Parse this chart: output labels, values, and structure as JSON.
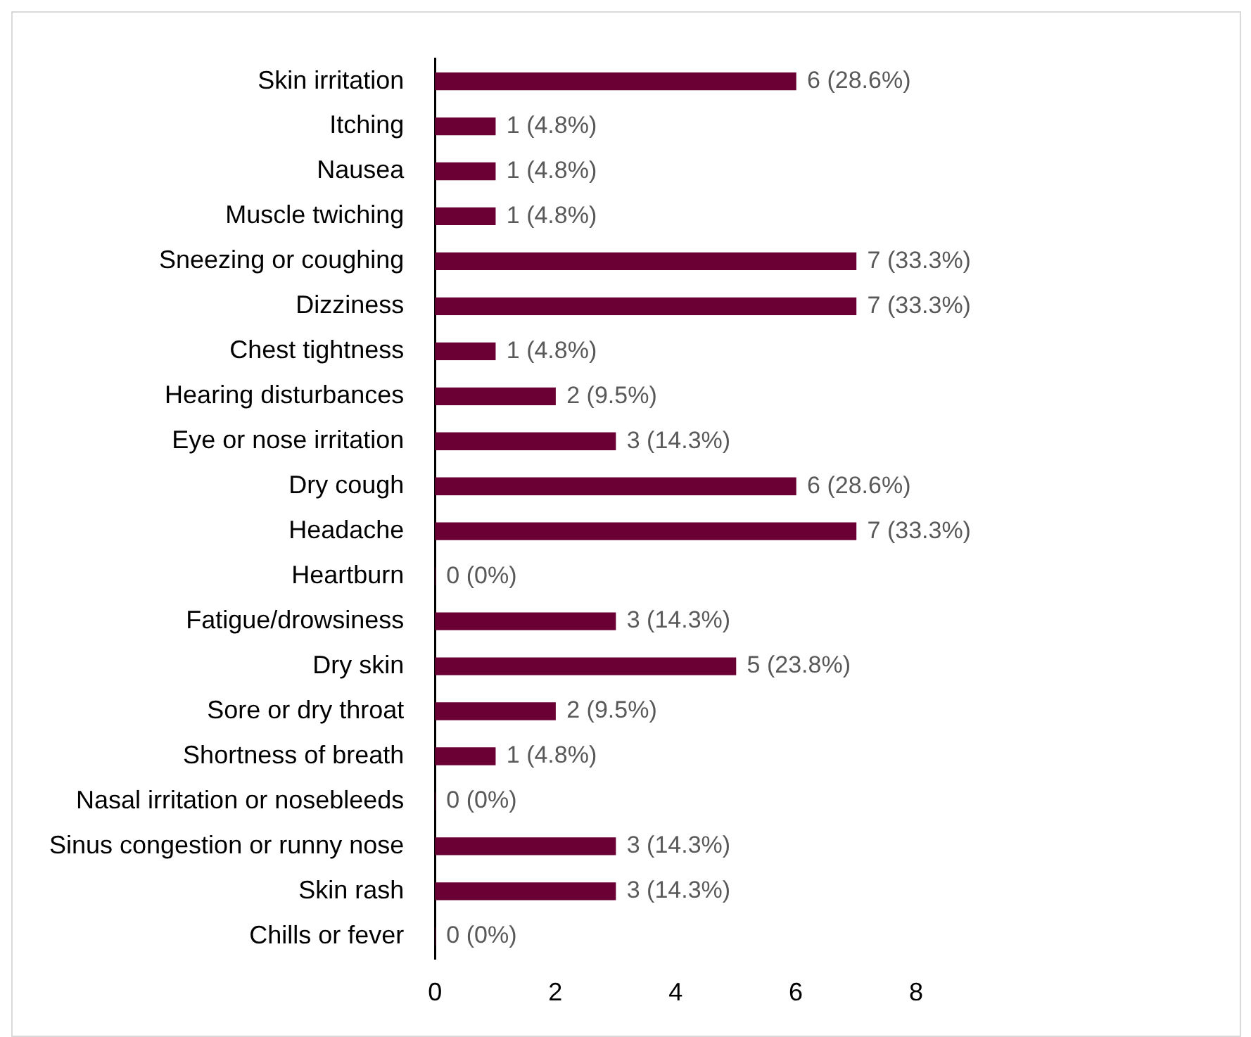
{
  "chart_data": {
    "type": "bar",
    "orientation": "horizontal",
    "categories": [
      "Skin irritation",
      "Itching",
      "Nausea",
      "Muscle twiching",
      "Sneezing or coughing",
      "Dizziness",
      "Chest tightness",
      "Hearing disturbances",
      "Eye or nose irritation",
      "Dry cough",
      "Headache",
      "Heartburn",
      "Fatigue/drowsiness",
      "Dry skin",
      "Sore or dry throat",
      "Shortness of breath",
      "Nasal irritation or nosebleeds",
      "Sinus congestion or runny nose",
      "Skin rash",
      "Chills or fever"
    ],
    "values": [
      6,
      1,
      1,
      1,
      7,
      7,
      1,
      2,
      3,
      6,
      7,
      0,
      3,
      5,
      2,
      1,
      0,
      3,
      3,
      0
    ],
    "value_labels": [
      "6 (28.6%)",
      "1 (4.8%)",
      "1 (4.8%)",
      "1 (4.8%)",
      "7 (33.3%)",
      "7 (33.3%)",
      "1 (4.8%)",
      "2 (9.5%)",
      "3 (14.3%)",
      "6 (28.6%)",
      "7 (33.3%)",
      "0 (0%)",
      "3 (14.3%)",
      "5 (23.8%)",
      "2 (9.5%)",
      "1 (4.8%)",
      "0 (0%)",
      "3 (14.3%)",
      "3 (14.3%)",
      "0 (0%)"
    ],
    "color": "#6b0035",
    "xlim": [
      0,
      8
    ],
    "xticks": [
      0,
      2,
      4,
      6,
      8
    ],
    "grid": false,
    "legend": false
  }
}
